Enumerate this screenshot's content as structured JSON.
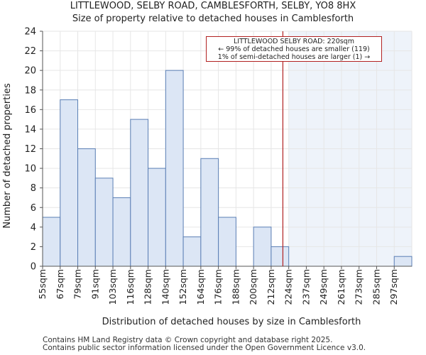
{
  "title": {
    "line1": "LITTLEWOOD, SELBY ROAD, CAMBLESFORTH, SELBY, YO8 8HX",
    "line2": "Size of property relative to detached houses in Camblesforth"
  },
  "chart_data": {
    "type": "bar",
    "categories": [
      "55sqm",
      "67sqm",
      "79sqm",
      "91sqm",
      "103sqm",
      "116sqm",
      "128sqm",
      "140sqm",
      "152sqm",
      "164sqm",
      "176sqm",
      "188sqm",
      "200sqm",
      "212sqm",
      "224sqm",
      "237sqm",
      "249sqm",
      "261sqm",
      "273sqm",
      "285sqm",
      "297sqm"
    ],
    "values": [
      5,
      17,
      12,
      9,
      7,
      15,
      10,
      20,
      3,
      11,
      5,
      0,
      4,
      2,
      0,
      0,
      0,
      0,
      0,
      0,
      1
    ],
    "ylim": [
      0,
      24
    ],
    "yticks": [
      0,
      2,
      4,
      6,
      8,
      10,
      12,
      14,
      16,
      18,
      20,
      22,
      24
    ],
    "xlabel": "Distribution of detached houses by size in Camblesforth",
    "ylabel": "Number of detached properties",
    "marker_value_sqm": 220,
    "highlight_from_bin": 14,
    "colors": {
      "bar_fill": "#dce6f5",
      "bar_edge": "#5b7fb5",
      "highlight_bg": "#eef3fa",
      "marker": "#b22222",
      "grid": "#e6e6e6",
      "axis": "#555555"
    }
  },
  "annotation": {
    "line1": "LITTLEWOOD SELBY ROAD: 220sqm",
    "line2": "← 99% of detached houses are smaller (119)",
    "line3": "1% of semi-detached houses are larger (1) →"
  },
  "footer": {
    "line1": "Contains HM Land Registry data © Crown copyright and database right 2025.",
    "line2": "Contains public sector information licensed under the Open Government Licence v3.0."
  }
}
